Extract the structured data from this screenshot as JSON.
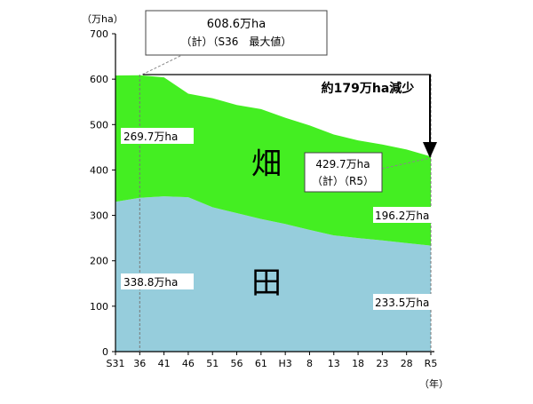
{
  "chart_data": {
    "type": "area",
    "stacked": true,
    "yunit": "（万ha）",
    "xunit": "（年）",
    "ylim": [
      0,
      700
    ],
    "yticks": [
      0,
      100,
      200,
      300,
      400,
      500,
      600,
      700
    ],
    "x_tick_labels": [
      "S31",
      "36",
      "41",
      "46",
      "51",
      "56",
      "61",
      "H3",
      "8",
      "13",
      "18",
      "23",
      "28",
      "R5"
    ],
    "x_years": [
      "S31",
      "S36",
      "S41",
      "S46",
      "S51",
      "S56",
      "S61",
      "H3",
      "H8",
      "H13",
      "H18",
      "H23",
      "H28",
      "R5"
    ],
    "series": [
      {
        "name": "田",
        "color": "#96cddc",
        "values": [
          330,
          338.8,
          342,
          340,
          318,
          305,
          292,
          281,
          268,
          256,
          250,
          245,
          239,
          233.5
        ]
      },
      {
        "name": "畑",
        "color": "#44ee22",
        "values": [
          278,
          269.7,
          262,
          228,
          240,
          238,
          242,
          234,
          230,
          222,
          215,
          211,
          206,
          196.2
        ]
      }
    ],
    "area_labels": [
      "畑",
      "田"
    ],
    "annotations": {
      "peak_value": "608.6万ha",
      "peak_note": "（計）（S36　最大値）",
      "decrease": "約179万ha減少",
      "latest_value": "429.7万ha",
      "latest_note": "（計）（R5）",
      "hata_s36": "269.7万ha",
      "ta_s36": "338.8万ha",
      "hata_r5": "196.2万ha",
      "ta_r5": "233.5万ha"
    }
  }
}
